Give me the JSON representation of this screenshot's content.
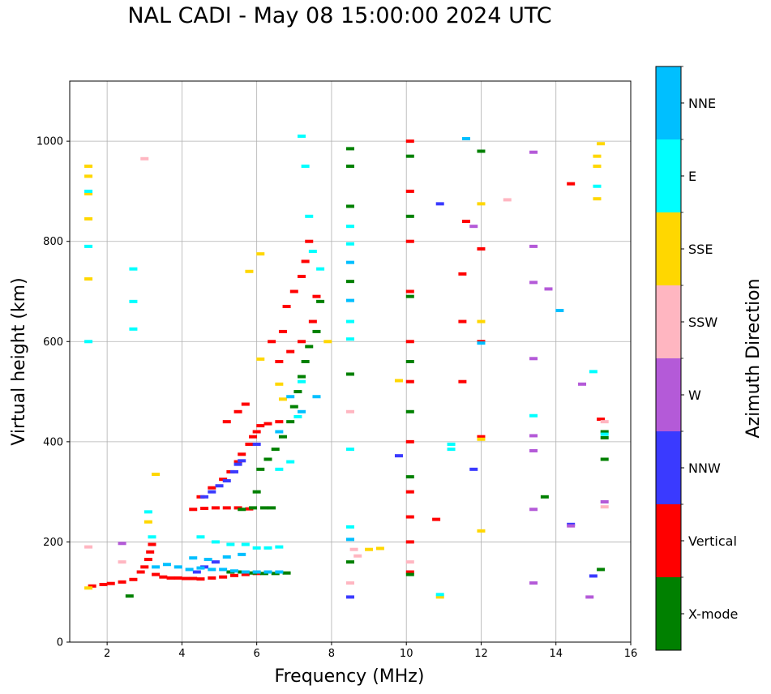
{
  "chart_data": {
    "type": "scatter",
    "title": "NAL CADI - May 08 15:00:00 2024 UTC",
    "xlabel": "Frequency (MHz)",
    "ylabel": "Virtual height (km)",
    "xlim": [
      1,
      16
    ],
    "ylim": [
      0,
      1120
    ],
    "xticks": [
      "2",
      "4",
      "6",
      "8",
      "10",
      "12",
      "14",
      "16"
    ],
    "yticks": [
      "0",
      "200",
      "400",
      "600",
      "800",
      "1000"
    ],
    "grid": true,
    "colorbar": {
      "label": "Azimuth Direction",
      "categories": [
        {
          "name": "X-mode",
          "color": "#008000"
        },
        {
          "name": "Vertical",
          "color": "#ff0000"
        },
        {
          "name": "NNW",
          "color": "#3a3aff"
        },
        {
          "name": "W",
          "color": "#b45ad8"
        },
        {
          "name": "SSW",
          "color": "#ffb6c1"
        },
        {
          "name": "SSE",
          "color": "#ffd700"
        },
        {
          "name": "E",
          "color": "#00ffff"
        },
        {
          "name": "NNE",
          "color": "#00bfff"
        }
      ]
    },
    "series": [
      {
        "name": "Vertical",
        "color": "#ff0000",
        "points": [
          [
            1.6,
            112
          ],
          [
            1.9,
            115
          ],
          [
            2.1,
            117
          ],
          [
            2.4,
            120
          ],
          [
            2.7,
            125
          ],
          [
            2.9,
            140
          ],
          [
            3.0,
            150
          ],
          [
            3.1,
            165
          ],
          [
            3.15,
            180
          ],
          [
            3.2,
            195
          ],
          [
            3.3,
            135
          ],
          [
            3.5,
            130
          ],
          [
            3.7,
            128
          ],
          [
            3.9,
            128
          ],
          [
            4.1,
            127
          ],
          [
            4.3,
            127
          ],
          [
            4.5,
            126
          ],
          [
            4.8,
            128
          ],
          [
            5.1,
            130
          ],
          [
            5.4,
            133
          ],
          [
            5.7,
            135
          ],
          [
            6.0,
            137
          ],
          [
            4.3,
            265
          ],
          [
            4.6,
            267
          ],
          [
            4.9,
            268
          ],
          [
            5.2,
            268
          ],
          [
            5.5,
            268
          ],
          [
            5.8,
            266
          ],
          [
            4.5,
            290
          ],
          [
            4.8,
            308
          ],
          [
            5.1,
            325
          ],
          [
            5.3,
            340
          ],
          [
            5.5,
            360
          ],
          [
            5.6,
            375
          ],
          [
            5.8,
            395
          ],
          [
            5.9,
            410
          ],
          [
            6.0,
            420
          ],
          [
            6.1,
            432
          ],
          [
            6.3,
            436
          ],
          [
            6.6,
            440
          ],
          [
            6.4,
            600
          ],
          [
            6.7,
            620
          ],
          [
            6.8,
            670
          ],
          [
            7.0,
            700
          ],
          [
            7.2,
            730
          ],
          [
            7.3,
            760
          ],
          [
            7.4,
            800
          ],
          [
            7.6,
            690
          ],
          [
            7.5,
            640
          ],
          [
            7.2,
            600
          ],
          [
            6.9,
            580
          ],
          [
            6.6,
            560
          ],
          [
            5.2,
            440
          ],
          [
            5.5,
            460
          ],
          [
            5.7,
            475
          ],
          [
            10.1,
            140
          ],
          [
            10.1,
            200
          ],
          [
            10.1,
            250
          ],
          [
            10.1,
            300
          ],
          [
            10.1,
            400
          ],
          [
            10.1,
            520
          ],
          [
            10.1,
            600
          ],
          [
            10.1,
            700
          ],
          [
            10.1,
            800
          ],
          [
            10.1,
            900
          ],
          [
            10.1,
            1000
          ],
          [
            11.5,
            520
          ],
          [
            11.5,
            640
          ],
          [
            11.5,
            735
          ],
          [
            11.6,
            840
          ],
          [
            12.0,
            410
          ],
          [
            12.0,
            600
          ],
          [
            12.0,
            785
          ],
          [
            14.4,
            915
          ],
          [
            10.8,
            245
          ],
          [
            15.2,
            445
          ]
        ]
      },
      {
        "name": "X-mode",
        "color": "#008000",
        "points": [
          [
            2.6,
            92
          ],
          [
            5.3,
            140
          ],
          [
            5.6,
            140
          ],
          [
            5.9,
            138
          ],
          [
            6.2,
            137
          ],
          [
            6.5,
            137
          ],
          [
            6.8,
            138
          ],
          [
            5.6,
            265
          ],
          [
            5.9,
            268
          ],
          [
            6.2,
            268
          ],
          [
            6.4,
            268
          ],
          [
            6.0,
            300
          ],
          [
            6.1,
            345
          ],
          [
            6.3,
            365
          ],
          [
            6.5,
            385
          ],
          [
            6.7,
            410
          ],
          [
            6.9,
            440
          ],
          [
            7.0,
            470
          ],
          [
            7.1,
            500
          ],
          [
            7.2,
            530
          ],
          [
            7.3,
            560
          ],
          [
            7.4,
            590
          ],
          [
            7.6,
            620
          ],
          [
            7.7,
            680
          ],
          [
            8.5,
            160
          ],
          [
            8.5,
            535
          ],
          [
            8.5,
            720
          ],
          [
            8.5,
            870
          ],
          [
            8.5,
            950
          ],
          [
            8.5,
            985
          ],
          [
            10.1,
            135
          ],
          [
            10.1,
            330
          ],
          [
            10.1,
            460
          ],
          [
            10.1,
            560
          ],
          [
            10.1,
            690
          ],
          [
            10.1,
            850
          ],
          [
            10.1,
            970
          ],
          [
            12.0,
            980
          ],
          [
            13.7,
            290
          ],
          [
            15.2,
            145
          ],
          [
            15.3,
            365
          ],
          [
            15.3,
            408
          ],
          [
            15.3,
            420
          ]
        ]
      },
      {
        "name": "NNW",
        "color": "#3a3aff",
        "points": [
          [
            4.4,
            140
          ],
          [
            4.6,
            150
          ],
          [
            4.9,
            160
          ],
          [
            4.6,
            290
          ],
          [
            4.8,
            300
          ],
          [
            5.0,
            312
          ],
          [
            5.2,
            322
          ],
          [
            5.4,
            340
          ],
          [
            5.5,
            355
          ],
          [
            5.6,
            362
          ],
          [
            6.0,
            395
          ],
          [
            8.5,
            90
          ],
          [
            9.8,
            372
          ],
          [
            10.9,
            875
          ],
          [
            11.8,
            345
          ],
          [
            14.4,
            235
          ],
          [
            15.0,
            132
          ]
        ]
      },
      {
        "name": "W",
        "color": "#b45ad8",
        "points": [
          [
            2.4,
            197
          ],
          [
            13.4,
            118
          ],
          [
            13.4,
            265
          ],
          [
            13.4,
            382
          ],
          [
            13.4,
            412
          ],
          [
            13.4,
            566
          ],
          [
            13.4,
            718
          ],
          [
            13.4,
            790
          ],
          [
            13.4,
            978
          ],
          [
            14.4,
            232
          ],
          [
            14.7,
            515
          ],
          [
            14.9,
            90
          ],
          [
            15.3,
            280
          ],
          [
            13.8,
            705
          ],
          [
            11.8,
            830
          ]
        ]
      },
      {
        "name": "SSW",
        "color": "#ffb6c1",
        "points": [
          [
            1.5,
            190
          ],
          [
            2.4,
            160
          ],
          [
            3.0,
            965
          ],
          [
            8.5,
            118
          ],
          [
            8.5,
            460
          ],
          [
            8.6,
            185
          ],
          [
            8.7,
            172
          ],
          [
            12.7,
            883
          ],
          [
            15.3,
            270
          ],
          [
            15.3,
            440
          ],
          [
            10.1,
            160
          ]
        ]
      },
      {
        "name": "SSE",
        "color": "#ffd700",
        "points": [
          [
            1.5,
            108
          ],
          [
            1.5,
            930
          ],
          [
            1.5,
            950
          ],
          [
            1.5,
            895
          ],
          [
            1.5,
            845
          ],
          [
            1.5,
            725
          ],
          [
            3.1,
            240
          ],
          [
            3.3,
            335
          ],
          [
            5.8,
            740
          ],
          [
            6.1,
            775
          ],
          [
            6.1,
            565
          ],
          [
            6.7,
            485
          ],
          [
            6.6,
            515
          ],
          [
            7.9,
            600
          ],
          [
            9.0,
            185
          ],
          [
            9.3,
            187
          ],
          [
            9.8,
            522
          ],
          [
            10.9,
            90
          ],
          [
            12.0,
            222
          ],
          [
            12.0,
            405
          ],
          [
            12.0,
            640
          ],
          [
            12.0,
            875
          ],
          [
            15.1,
            885
          ],
          [
            15.1,
            950
          ],
          [
            15.1,
            970
          ],
          [
            15.2,
            995
          ]
        ]
      },
      {
        "name": "E",
        "color": "#00ffff",
        "points": [
          [
            1.5,
            600
          ],
          [
            1.5,
            790
          ],
          [
            1.5,
            900
          ],
          [
            2.7,
            625
          ],
          [
            2.7,
            680
          ],
          [
            2.7,
            745
          ],
          [
            3.1,
            260
          ],
          [
            3.2,
            210
          ],
          [
            4.5,
            210
          ],
          [
            4.9,
            200
          ],
          [
            5.3,
            195
          ],
          [
            5.7,
            195
          ],
          [
            6.0,
            188
          ],
          [
            6.3,
            188
          ],
          [
            6.6,
            190
          ],
          [
            6.6,
            345
          ],
          [
            6.9,
            360
          ],
          [
            7.1,
            450
          ],
          [
            7.2,
            520
          ],
          [
            7.3,
            950
          ],
          [
            7.2,
            1010
          ],
          [
            7.4,
            850
          ],
          [
            7.5,
            780
          ],
          [
            7.7,
            745
          ],
          [
            8.5,
            230
          ],
          [
            8.5,
            385
          ],
          [
            8.5,
            605
          ],
          [
            8.5,
            640
          ],
          [
            8.5,
            795
          ],
          [
            8.5,
            830
          ],
          [
            11.2,
            385
          ],
          [
            11.2,
            395
          ],
          [
            10.9,
            95
          ],
          [
            13.4,
            452
          ],
          [
            15.0,
            540
          ],
          [
            15.1,
            910
          ],
          [
            15.3,
            415
          ]
        ]
      },
      {
        "name": "NNE",
        "color": "#00bfff",
        "points": [
          [
            3.3,
            150
          ],
          [
            3.6,
            155
          ],
          [
            3.9,
            150
          ],
          [
            4.2,
            145
          ],
          [
            4.5,
            148
          ],
          [
            4.8,
            145
          ],
          [
            5.1,
            145
          ],
          [
            5.4,
            142
          ],
          [
            5.7,
            140
          ],
          [
            6.0,
            140
          ],
          [
            6.3,
            140
          ],
          [
            6.6,
            140
          ],
          [
            4.3,
            168
          ],
          [
            4.7,
            165
          ],
          [
            5.2,
            170
          ],
          [
            5.6,
            175
          ],
          [
            6.6,
            420
          ],
          [
            6.9,
            490
          ],
          [
            7.2,
            460
          ],
          [
            7.6,
            490
          ],
          [
            8.5,
            205
          ],
          [
            8.5,
            682
          ],
          [
            8.5,
            758
          ],
          [
            11.6,
            1005
          ],
          [
            12.0,
            597
          ],
          [
            14.1,
            662
          ]
        ]
      }
    ]
  }
}
